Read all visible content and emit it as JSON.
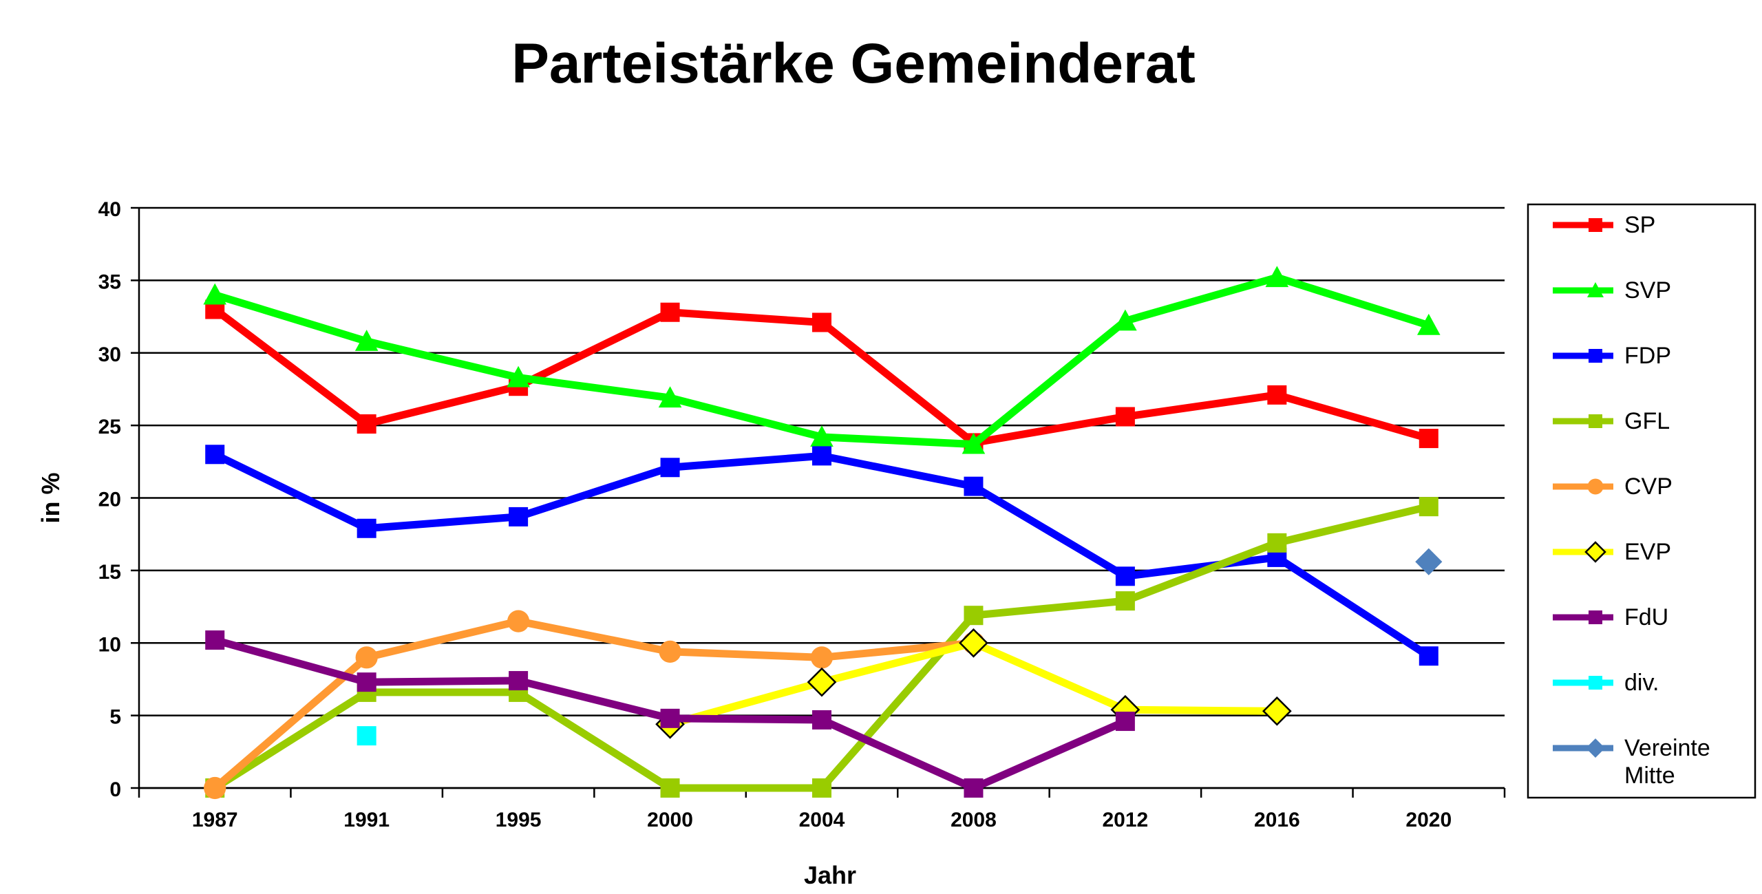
{
  "chart_data": {
    "type": "line",
    "title": "Parteistärke Gemeinderat",
    "xlabel": "Jahr",
    "ylabel": "in %",
    "ylim": [
      0,
      40
    ],
    "yticks": [
      "0",
      "5",
      "10",
      "15",
      "20",
      "25",
      "30",
      "35",
      "40"
    ],
    "categories": [
      "1987",
      "1991",
      "1995",
      "2000",
      "2004",
      "2008",
      "2012",
      "2016",
      "2020"
    ],
    "grid": "horizontal",
    "legend": "right",
    "series": [
      {
        "name": "SP",
        "color": "#ff0000",
        "marker": "square",
        "values": [
          33.0,
          25.1,
          27.7,
          32.8,
          32.1,
          23.8,
          25.6,
          27.1,
          24.1
        ]
      },
      {
        "name": "SVP",
        "color": "#00ff00",
        "marker": "triangle",
        "values": [
          34.0,
          30.8,
          28.3,
          26.9,
          24.2,
          23.7,
          32.2,
          35.2,
          31.9
        ]
      },
      {
        "name": "FDP",
        "color": "#0000ff",
        "marker": "square",
        "values": [
          23.0,
          17.9,
          18.7,
          22.1,
          22.9,
          20.8,
          14.6,
          15.9,
          9.1
        ]
      },
      {
        "name": "GFL",
        "color": "#99cc00",
        "marker": "square",
        "values": [
          0,
          6.6,
          6.6,
          0,
          0,
          11.9,
          12.9,
          16.9,
          19.4
        ]
      },
      {
        "name": "CVP",
        "color": "#ff9933",
        "marker": "circle",
        "values": [
          0,
          9.0,
          11.5,
          9.4,
          9.0,
          10.0,
          null,
          null,
          null
        ]
      },
      {
        "name": "EVP",
        "color": "#ffff00",
        "marker": "diamond-open",
        "values": [
          null,
          null,
          null,
          4.4,
          7.3,
          10.0,
          5.4,
          5.3,
          null
        ]
      },
      {
        "name": "FdU",
        "color": "#800080",
        "marker": "square",
        "values": [
          10.2,
          7.3,
          7.4,
          4.8,
          4.7,
          0,
          4.6,
          null,
          null
        ]
      },
      {
        "name": "div.",
        "color": "#00ffff",
        "marker": "square",
        "values": [
          null,
          3.6,
          null,
          null,
          null,
          null,
          null,
          null,
          null
        ]
      },
      {
        "name": "Vereinte Mitte",
        "color": "#4f81bd",
        "marker": "diamond",
        "values": [
          null,
          null,
          null,
          null,
          null,
          null,
          null,
          null,
          15.6
        ]
      }
    ]
  }
}
